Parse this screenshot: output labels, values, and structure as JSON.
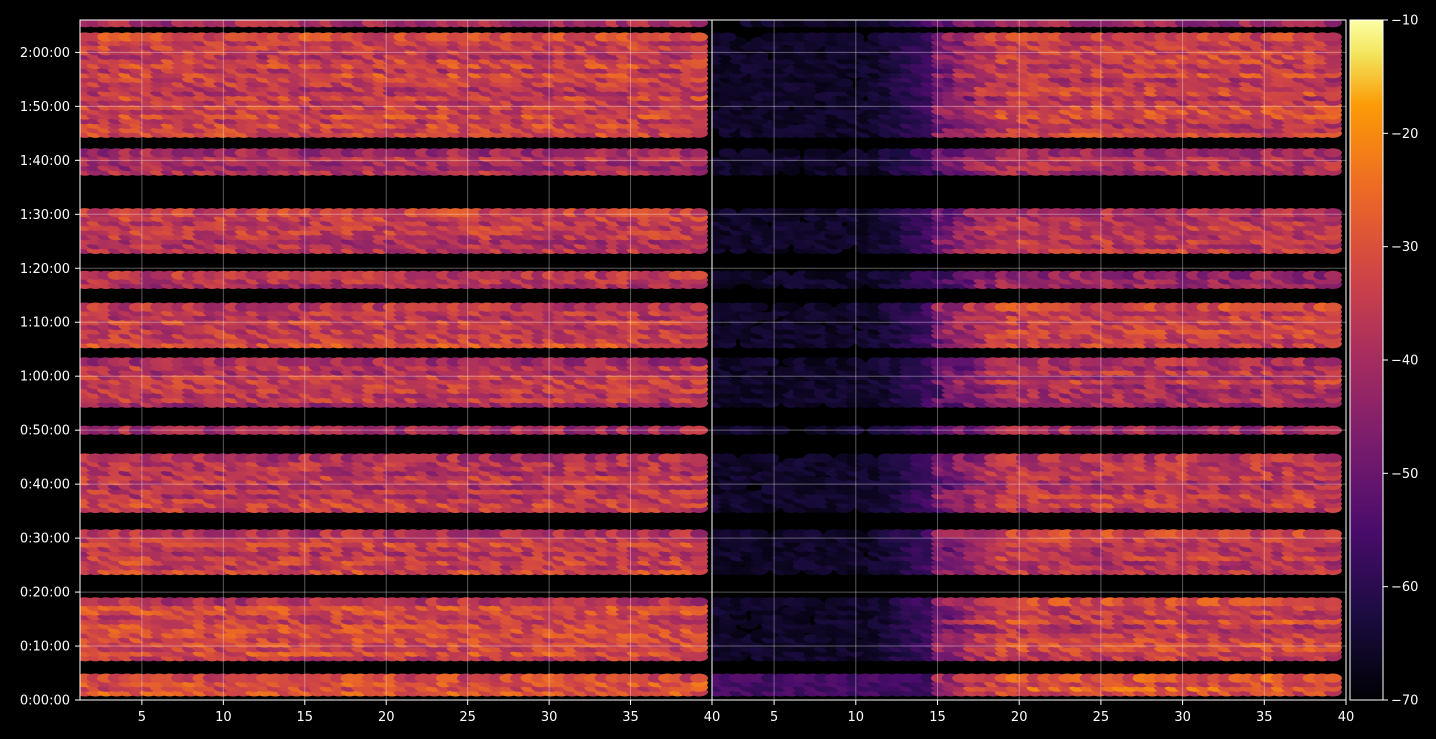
{
  "chart_data": {
    "type": "heatmap",
    "title": "",
    "xlabel": "",
    "ylabel": "",
    "background": "#000000",
    "colormap": "inferno",
    "color_scale": {
      "min": -70,
      "max": -10,
      "ticks": [
        -70,
        -60,
        -50,
        -40,
        -30,
        -20,
        -10
      ],
      "tick_labels": [
        "−70",
        "−60",
        "−50",
        "−40",
        "−30",
        "−20",
        "−10"
      ]
    },
    "panels": [
      {
        "xlim": [
          1.2,
          40
        ],
        "x_ticks": [
          5,
          10,
          15,
          20,
          25,
          30,
          35,
          40
        ],
        "x_tick_labels": [
          "5",
          "10",
          "15",
          "20",
          "25",
          "30",
          "35",
          "40"
        ],
        "active_x_range": [
          1.2,
          39.8
        ]
      },
      {
        "xlim": [
          1.2,
          40
        ],
        "x_ticks": [
          5,
          10,
          15,
          20,
          25,
          30,
          35,
          40
        ],
        "x_tick_labels": [
          "5",
          "10",
          "15",
          "20",
          "25",
          "30",
          "35",
          "40"
        ],
        "active_x_range": [
          15,
          39.8
        ],
        "faint_x_range": [
          1.2,
          15
        ]
      }
    ],
    "ylim_minutes": [
      0,
      126
    ],
    "y_ticks_minutes": [
      0,
      10,
      20,
      30,
      40,
      50,
      60,
      70,
      80,
      90,
      100,
      110,
      120
    ],
    "y_tick_labels": [
      "0:00:00",
      "0:10:00",
      "0:20:00",
      "0:30:00",
      "0:40:00",
      "0:50:00",
      "1:00:00",
      "1:10:00",
      "1:20:00",
      "1:30:00",
      "1:40:00",
      "1:50:00",
      "2:00:00"
    ],
    "grid": true,
    "activity_bands": [
      {
        "start_min": 1.5,
        "end_min": 4.5,
        "level_dB": -30
      },
      {
        "start_min": 8,
        "end_min": 19,
        "level_dB": -34
      },
      {
        "start_min": 24,
        "end_min": 31,
        "level_dB": -35
      },
      {
        "start_min": 35.5,
        "end_min": 45,
        "level_dB": -36
      },
      {
        "start_min": 50,
        "end_min": 50.5,
        "level_dB": -40
      },
      {
        "start_min": 55,
        "end_min": 63,
        "level_dB": -38
      },
      {
        "start_min": 66,
        "end_min": 73.5,
        "level_dB": -34
      },
      {
        "start_min": 77,
        "end_min": 79,
        "level_dB": -40
      },
      {
        "start_min": 83.5,
        "end_min": 91,
        "level_dB": -36
      },
      {
        "start_min": 98,
        "end_min": 102,
        "level_dB": -40
      },
      {
        "start_min": 105,
        "end_min": 123,
        "level_dB": -34
      },
      {
        "start_min": 125.5,
        "end_min": 126,
        "level_dB": -42
      }
    ]
  }
}
